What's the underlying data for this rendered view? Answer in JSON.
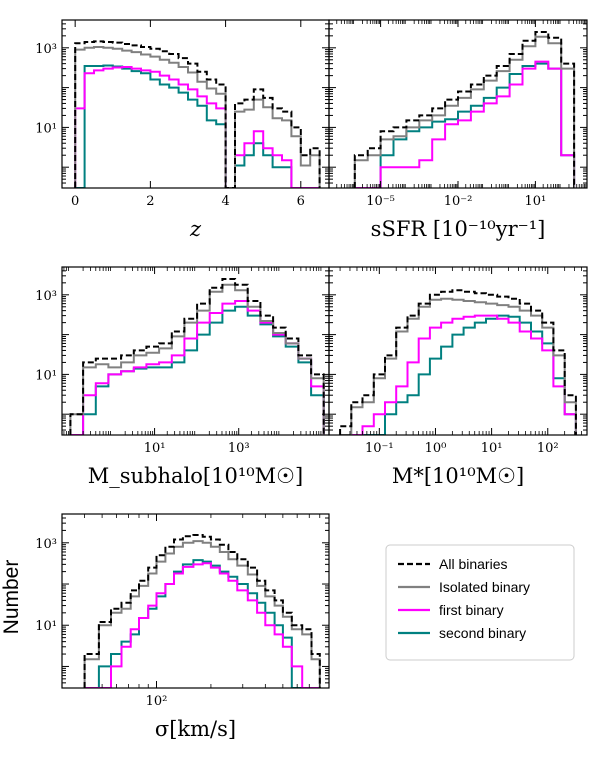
{
  "figure": {
    "ylabel": "Number",
    "legend": [
      "All binaries",
      "Isolated binary",
      "first binary",
      "second binary"
    ],
    "colors": {
      "All binaries": "#000000",
      "Isolated binary": "#808080",
      "first binary": "#ff00ff",
      "second binary": "#008080"
    }
  },
  "chart_data": [
    {
      "type": "area",
      "title": "",
      "xlabel": "z",
      "ylabel": "Number",
      "xscale": "linear",
      "yscale": "log",
      "xlim": [
        -0.35,
        6.75
      ],
      "ylim": [
        0.3,
        5000
      ],
      "xticks": [
        0,
        2,
        4,
        6
      ],
      "xticklabels": [
        "0",
        "2",
        "4",
        "6"
      ],
      "yticks": [
        10,
        1000
      ],
      "yticklabels": [
        "10^1",
        "10^3"
      ],
      "edges": [
        0,
        0.25,
        0.5,
        0.75,
        1,
        1.25,
        1.5,
        1.75,
        2,
        2.25,
        2.5,
        2.75,
        3,
        3.25,
        3.5,
        3.75,
        4,
        4.25,
        4.5,
        4.75,
        5,
        5.25,
        5.5,
        5.75,
        6,
        6.25,
        6.5
      ],
      "series": [
        {
          "name": "All binaries",
          "values": [
            1300,
            1400,
            1450,
            1400,
            1350,
            1250,
            1150,
            1050,
            950,
            820,
            700,
            550,
            400,
            250,
            160,
            120,
            0.3,
            40,
            50,
            90,
            55,
            30,
            25,
            10,
            2,
            3
          ]
        },
        {
          "name": "Isolated binary",
          "values": [
            900,
            1000,
            1050,
            1000,
            950,
            850,
            780,
            680,
            600,
            500,
            420,
            330,
            240,
            140,
            95,
            70,
            0.3,
            25,
            28,
            50,
            32,
            17,
            15,
            6,
            1.1,
            2
          ]
        },
        {
          "name": "first binary",
          "values": [
            30,
            230,
            270,
            300,
            320,
            330,
            300,
            270,
            250,
            200,
            160,
            120,
            90,
            60,
            40,
            30,
            0.3,
            2,
            4,
            8,
            3,
            2,
            1.5,
            0.3,
            0.3,
            0.3
          ]
        },
        {
          "name": "second binary",
          "values": [
            0.3,
            350,
            350,
            360,
            340,
            300,
            260,
            230,
            160,
            120,
            100,
            75,
            50,
            35,
            15,
            12,
            0.3,
            1.1,
            2,
            4,
            2,
            1,
            1,
            0.3,
            0.3,
            0.3
          ]
        }
      ]
    },
    {
      "type": "area",
      "title": "",
      "xlabel": "sSFR [10^-10 yr^-1]",
      "ylabel": "",
      "xscale": "log",
      "yscale": "log",
      "xlim": [
        1e-07,
        1000.0
      ],
      "ylim": [
        0.3,
        5000
      ],
      "xticks": [
        1e-05,
        0.01,
        10
      ],
      "xticklabels": [
        "10^-5",
        "10^-2",
        "10^1"
      ],
      "yticks": [
        10,
        1000
      ],
      "yticklabels": [
        "",
        ""
      ],
      "edges": [
        1e-06,
        3.16e-06,
        1e-05,
        3.16e-05,
        0.0001,
        0.000316,
        0.001,
        0.00316,
        0.01,
        0.0316,
        0.1,
        0.316,
        1,
        3.16,
        10,
        31.6,
        100,
        316
      ],
      "series": [
        {
          "name": "All binaries",
          "values": [
            2,
            3,
            8,
            10,
            15,
            20,
            30,
            50,
            80,
            120,
            200,
            350,
            700,
            1500,
            2500,
            1800,
            400
          ]
        },
        {
          "name": "Isolated binary",
          "values": [
            1.5,
            2,
            5,
            6,
            10,
            15,
            20,
            35,
            55,
            90,
            150,
            260,
            500,
            1100,
            1900,
            1300,
            300
          ]
        },
        {
          "name": "first binary",
          "values": [
            0.3,
            0.3,
            1,
            1,
            1,
            1.5,
            5,
            12,
            15,
            25,
            40,
            60,
            120,
            300,
            450,
            300,
            2
          ]
        },
        {
          "name": "second binary",
          "values": [
            0.3,
            0.3,
            2,
            5,
            8,
            10,
            14,
            16,
            25,
            35,
            55,
            100,
            220,
            350,
            400,
            300,
            2
          ]
        }
      ]
    },
    {
      "type": "area",
      "title": "",
      "xlabel": "M_subhalo [10^10 M_sun]",
      "ylabel": "Number",
      "xscale": "log",
      "yscale": "log",
      "xlim": [
        0.063,
        140000.0
      ],
      "ylim": [
        0.3,
        5000
      ],
      "xticks": [
        10,
        1000
      ],
      "xticklabels": [
        "10^1",
        "10^3"
      ],
      "yticks": [
        10,
        1000
      ],
      "yticklabels": [
        "10^1",
        "10^3"
      ],
      "edges": [
        0.1,
        0.2,
        0.4,
        0.8,
        1.6,
        3.2,
        6.4,
        12.8,
        25.6,
        51.2,
        102.4,
        204.8,
        409.6,
        819.2,
        1638.4,
        3276.8,
        6553.6,
        13107.2,
        26214.4,
        52428.8,
        104857.6
      ],
      "series": [
        {
          "name": "All binaries",
          "values": [
            1,
            20,
            25,
            25,
            30,
            40,
            50,
            60,
            120,
            250,
            600,
            1500,
            2500,
            1800,
            700,
            300,
            150,
            80,
            30,
            10
          ]
        },
        {
          "name": "Isolated binary",
          "values": [
            1,
            15,
            18,
            15,
            20,
            30,
            35,
            45,
            90,
            200,
            400,
            1200,
            1800,
            1300,
            500,
            220,
            110,
            60,
            25,
            8
          ]
        },
        {
          "name": "first binary",
          "values": [
            0.3,
            3,
            6,
            10,
            12,
            15,
            18,
            20,
            30,
            80,
            200,
            350,
            600,
            700,
            400,
            200,
            100,
            60,
            25,
            5
          ]
        },
        {
          "name": "second binary",
          "values": [
            0.3,
            1,
            5,
            10,
            12,
            14,
            15,
            15,
            20,
            40,
            100,
            200,
            400,
            500,
            300,
            180,
            90,
            50,
            20,
            3
          ]
        }
      ]
    },
    {
      "type": "area",
      "title": "",
      "xlabel": "M_* [10^10 M_sun]",
      "ylabel": "",
      "xscale": "log",
      "yscale": "log",
      "xlim": [
        0.0127,
        500
      ],
      "ylim": [
        0.3,
        5000
      ],
      "xticks": [
        0.1,
        1,
        10,
        100
      ],
      "xticklabels": [
        "10^-1",
        "10^0",
        "10^1",
        "10^2"
      ],
      "yticks": [
        10,
        1000
      ],
      "yticklabels": [
        "",
        ""
      ],
      "edges": [
        0.02,
        0.0317,
        0.0502,
        0.0796,
        0.126,
        0.2,
        0.317,
        0.502,
        0.796,
        1.26,
        2,
        3.17,
        5.02,
        7.96,
        12.6,
        20,
        31.7,
        50.2,
        79.6,
        126,
        200,
        317
      ],
      "series": [
        {
          "name": "All binaries",
          "values": [
            0.5,
            2,
            3,
            10,
            30,
            150,
            300,
            600,
            1000,
            1200,
            1300,
            1200,
            1100,
            1000,
            900,
            800,
            600,
            400,
            200,
            40,
            3
          ]
        },
        {
          "name": "Isolated binary",
          "values": [
            0.3,
            1.5,
            2,
            8,
            25,
            120,
            250,
            500,
            750,
            800,
            750,
            700,
            650,
            600,
            550,
            500,
            400,
            300,
            150,
            30,
            2
          ]
        },
        {
          "name": "first binary",
          "values": [
            0.3,
            0.3,
            0.5,
            1,
            2,
            5,
            20,
            80,
            150,
            200,
            250,
            280,
            300,
            300,
            250,
            200,
            120,
            80,
            40,
            5,
            1
          ]
        },
        {
          "name": "second binary",
          "values": [
            0.3,
            0.3,
            0.3,
            0.3,
            1,
            2,
            3,
            10,
            25,
            50,
            100,
            150,
            200,
            250,
            300,
            280,
            200,
            120,
            60,
            8,
            1
          ]
        }
      ]
    },
    {
      "type": "area",
      "title": "",
      "xlabel": "sigma [km/s]",
      "ylabel": "Number",
      "xscale": "log",
      "yscale": "log",
      "xlim": [
        30,
        900
      ],
      "ylim": [
        0.3,
        5000
      ],
      "xticks": [
        100
      ],
      "xticklabels": [
        "10^2"
      ],
      "yticks": [
        10,
        1000
      ],
      "yticklabels": [
        "10^1",
        "10^3"
      ],
      "edges": [
        40,
        48,
        56,
        64,
        72,
        80,
        90,
        100,
        112,
        125,
        140,
        160,
        180,
        200,
        224,
        250,
        280,
        320,
        360,
        400,
        450,
        500,
        560,
        640,
        720,
        800
      ],
      "series": [
        {
          "name": "All binaries",
          "values": [
            2,
            12,
            25,
            35,
            70,
            120,
            250,
            500,
            800,
            1200,
            1450,
            1550,
            1400,
            1200,
            900,
            600,
            400,
            250,
            120,
            70,
            40,
            20,
            10,
            8,
            2
          ]
        },
        {
          "name": "Isolated binary",
          "values": [
            1.5,
            10,
            20,
            25,
            50,
            90,
            180,
            350,
            550,
            800,
            1000,
            1100,
            1000,
            800,
            600,
            400,
            280,
            170,
            90,
            50,
            30,
            16,
            8,
            6,
            1.5
          ]
        },
        {
          "name": "first binary",
          "values": [
            0.3,
            0.3,
            1,
            3,
            8,
            15,
            30,
            60,
            100,
            180,
            260,
            300,
            320,
            250,
            180,
            120,
            70,
            40,
            20,
            10,
            6,
            3,
            1,
            0.3,
            0.3
          ]
        },
        {
          "name": "second binary",
          "values": [
            0.3,
            1,
            2,
            4,
            6,
            15,
            25,
            50,
            100,
            200,
            300,
            380,
            350,
            280,
            200,
            150,
            100,
            60,
            35,
            20,
            10,
            5,
            0.3,
            0.3,
            0.3
          ]
        }
      ]
    }
  ]
}
